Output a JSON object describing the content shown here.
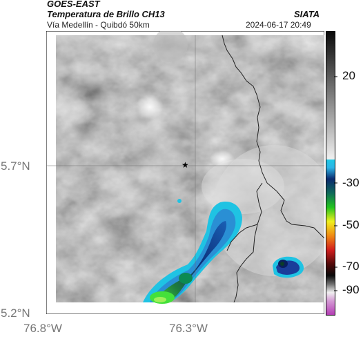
{
  "header": {
    "source": "GOES-EAST",
    "product": "Temperatura de Brillo CH13",
    "route": "Vía Medellín - Quibdó 50km",
    "agency": "SIATA",
    "datetime": "2024-06-17 20:49"
  },
  "map": {
    "marker_icon": "star-icon",
    "y_axis_labels": [
      "5.7°N",
      "5.2°N"
    ],
    "x_axis_labels": [
      "76.8°W",
      "76.3°W"
    ]
  },
  "colorbar": {
    "tick_labels": [
      "20",
      "-30",
      "-50",
      "-70",
      "-90"
    ],
    "colors": {
      "gray_dark": "#1a1a1a",
      "gray_light": "#f2f2f2",
      "cyan": "#1ec8e6",
      "navy": "#0a2a6e",
      "green": "#22c41e",
      "yellow": "#f0f01e",
      "red": "#d21e1e",
      "black": "#0a0a0a",
      "magenta": "#b43cb4"
    }
  }
}
